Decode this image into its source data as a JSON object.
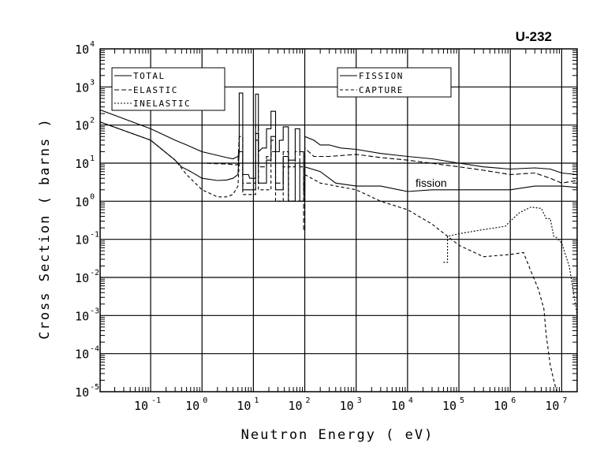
{
  "chart_data": {
    "type": "line",
    "title": "U-232",
    "xlabel": "Neutron Energy ( eV)",
    "ylabel": "Cross Section ( barns )",
    "xscale": "log",
    "yscale": "log",
    "xlim": [
      0.0104,
      20000000
    ],
    "ylim": [
      1e-05,
      10000
    ],
    "grid": true,
    "x_tick_exponents": [
      "-1",
      "0",
      "1",
      "2",
      "3",
      "4",
      "5",
      "6",
      "7"
    ],
    "y_tick_exponents": [
      "4",
      "3",
      "2",
      "1",
      "0",
      "-1",
      "-2",
      "-3",
      "-4",
      "-5"
    ],
    "tick_base": "10",
    "annotations": [
      {
        "text": "fission",
        "x": 15000,
        "y": 2.6
      }
    ],
    "legends": [
      {
        "placement": "top-left",
        "entries": [
          "TOTAL",
          "ELASTIC",
          "INELASTIC"
        ]
      },
      {
        "placement": "top-center",
        "entries": [
          "FISSION",
          "CAPTURE"
        ]
      }
    ],
    "series": [
      {
        "name": "TOTAL",
        "style": "solid",
        "points": [
          [
            0.0104,
            250
          ],
          [
            0.1,
            80
          ],
          [
            0.3,
            40
          ],
          [
            0.5,
            30
          ],
          [
            1,
            20
          ],
          [
            2,
            16
          ],
          [
            3,
            14
          ],
          [
            4,
            13
          ],
          [
            5,
            15
          ],
          [
            5.3,
            20
          ],
          [
            5.3,
            690
          ],
          [
            6.2,
            690
          ],
          [
            6.2,
            5
          ],
          [
            8,
            5
          ],
          [
            8.5,
            4
          ],
          [
            11,
            4
          ],
          [
            11,
            650
          ],
          [
            12.5,
            650
          ],
          [
            12.5,
            20
          ],
          [
            15,
            25
          ],
          [
            18,
            25
          ],
          [
            18,
            80
          ],
          [
            22,
            80
          ],
          [
            22,
            230
          ],
          [
            27,
            230
          ],
          [
            27,
            20
          ],
          [
            32,
            20
          ],
          [
            32,
            40
          ],
          [
            38,
            40
          ],
          [
            38,
            90
          ],
          [
            48,
            90
          ],
          [
            48,
            12
          ],
          [
            65,
            12
          ],
          [
            65,
            80
          ],
          [
            80,
            80
          ],
          [
            80,
            20
          ],
          [
            95,
            20
          ],
          [
            95,
            2
          ],
          [
            100,
            2
          ],
          [
            100,
            50
          ],
          [
            150,
            40
          ],
          [
            200,
            30
          ],
          [
            300,
            30
          ],
          [
            500,
            25
          ],
          [
            1000,
            23
          ],
          [
            3000,
            18
          ],
          [
            10000,
            15
          ],
          [
            30000,
            13
          ],
          [
            100000,
            10
          ],
          [
            300000,
            8
          ],
          [
            1000000,
            7
          ],
          [
            3000000,
            7.5
          ],
          [
            6000000,
            7
          ],
          [
            10000000,
            5.5
          ],
          [
            20000000,
            5
          ]
        ]
      },
      {
        "name": "ELASTIC",
        "style": "dashed",
        "points": [
          [
            0.0104,
            10
          ],
          [
            0.3,
            10
          ],
          [
            1,
            10
          ],
          [
            3,
            9.5
          ],
          [
            5,
            9
          ],
          [
            5.3,
            50
          ],
          [
            6.2,
            50
          ],
          [
            6.2,
            3
          ],
          [
            11,
            3
          ],
          [
            11,
            100
          ],
          [
            12.5,
            100
          ],
          [
            12.5,
            8
          ],
          [
            18,
            8
          ],
          [
            18,
            15
          ],
          [
            22,
            15
          ],
          [
            22,
            40
          ],
          [
            27,
            40
          ],
          [
            27,
            3
          ],
          [
            38,
            3
          ],
          [
            38,
            20
          ],
          [
            48,
            20
          ],
          [
            48,
            8
          ],
          [
            65,
            8
          ],
          [
            65,
            20
          ],
          [
            80,
            20
          ],
          [
            80,
            8
          ],
          [
            95,
            8
          ],
          [
            95,
            0.17
          ],
          [
            100,
            0.17
          ],
          [
            100,
            25
          ],
          [
            150,
            15
          ],
          [
            300,
            15
          ],
          [
            1000,
            17
          ],
          [
            3000,
            14
          ],
          [
            10000,
            12
          ],
          [
            100000,
            8
          ],
          [
            300000,
            6.5
          ],
          [
            1000000,
            5
          ],
          [
            3000000,
            5.5
          ],
          [
            6000000,
            4
          ],
          [
            10000000,
            3
          ],
          [
            20000000,
            3.5
          ]
        ]
      },
      {
        "name": "INELASTIC",
        "style": "dotted",
        "points": [
          [
            50000,
            0.025
          ],
          [
            60000,
            0.025
          ],
          [
            60000,
            0.12
          ],
          [
            100000,
            0.14
          ],
          [
            300000,
            0.18
          ],
          [
            800000,
            0.22
          ],
          [
            1000000,
            0.3
          ],
          [
            1500000,
            0.5
          ],
          [
            2500000,
            0.7
          ],
          [
            4000000,
            0.65
          ],
          [
            5000000,
            0.35
          ],
          [
            6000000,
            0.35
          ],
          [
            7000000,
            0.12
          ],
          [
            8000000,
            0.11
          ],
          [
            10000000,
            0.08
          ],
          [
            14000000,
            0.02
          ],
          [
            17000000,
            0.004
          ],
          [
            20000000,
            0.001
          ]
        ]
      },
      {
        "name": "FISSION",
        "style": "solid",
        "points": [
          [
            0.0104,
            120
          ],
          [
            0.1,
            40
          ],
          [
            0.3,
            12
          ],
          [
            0.4,
            8
          ],
          [
            0.6,
            6
          ],
          [
            1,
            4
          ],
          [
            2,
            3.5
          ],
          [
            3,
            3.6
          ],
          [
            4,
            4
          ],
          [
            5,
            5
          ],
          [
            5.3,
            20
          ],
          [
            6.2,
            20
          ],
          [
            6.2,
            2
          ],
          [
            11,
            2
          ],
          [
            11,
            60
          ],
          [
            12.5,
            60
          ],
          [
            12.5,
            3
          ],
          [
            18,
            3
          ],
          [
            18,
            12
          ],
          [
            22,
            12
          ],
          [
            22,
            50
          ],
          [
            27,
            50
          ],
          [
            27,
            2
          ],
          [
            38,
            2
          ],
          [
            38,
            15
          ],
          [
            48,
            15
          ],
          [
            48,
            1
          ],
          [
            65,
            1
          ],
          [
            65,
            10
          ],
          [
            80,
            10
          ],
          [
            80,
            1
          ],
          [
            100,
            1
          ],
          [
            100,
            8
          ],
          [
            200,
            6
          ],
          [
            400,
            3
          ],
          [
            1000,
            2.5
          ],
          [
            3000,
            2.5
          ],
          [
            10000,
            1.8
          ],
          [
            30000,
            2
          ],
          [
            100000,
            2
          ],
          [
            1000000,
            2
          ],
          [
            3000000,
            2.5
          ],
          [
            10000000,
            2.5
          ],
          [
            20000000,
            2.3
          ]
        ]
      },
      {
        "name": "CAPTURE",
        "style": "longdash",
        "points": [
          [
            0.0104,
            120
          ],
          [
            0.1,
            40
          ],
          [
            0.3,
            12
          ],
          [
            0.5,
            5
          ],
          [
            1,
            2
          ],
          [
            2,
            1.3
          ],
          [
            3,
            1.3
          ],
          [
            4,
            1.5
          ],
          [
            5,
            2.5
          ],
          [
            5.3,
            10
          ],
          [
            6.2,
            10
          ],
          [
            6.2,
            1.5
          ],
          [
            11,
            1.5
          ],
          [
            11,
            40
          ],
          [
            12.5,
            40
          ],
          [
            12.5,
            2
          ],
          [
            22,
            2
          ],
          [
            22,
            20
          ],
          [
            27,
            20
          ],
          [
            27,
            1
          ],
          [
            38,
            1
          ],
          [
            38,
            8
          ],
          [
            48,
            8
          ],
          [
            48,
            1
          ],
          [
            80,
            1
          ],
          [
            95,
            1
          ],
          [
            100,
            5
          ],
          [
            200,
            3
          ],
          [
            1000,
            2
          ],
          [
            3000,
            1
          ],
          [
            10000,
            0.6
          ],
          [
            30000,
            0.25
          ],
          [
            60000,
            0.12
          ],
          [
            100000,
            0.07
          ],
          [
            300000,
            0.035
          ],
          [
            1000000,
            0.04
          ],
          [
            1800000,
            0.045
          ],
          [
            2500000,
            0.015
          ],
          [
            3500000,
            0.005
          ],
          [
            4500000,
            0.0015
          ],
          [
            5000000,
            0.0003
          ],
          [
            6000000,
            5e-05
          ],
          [
            7000000,
            2e-05
          ],
          [
            8000000,
            1e-05
          ]
        ]
      }
    ]
  }
}
